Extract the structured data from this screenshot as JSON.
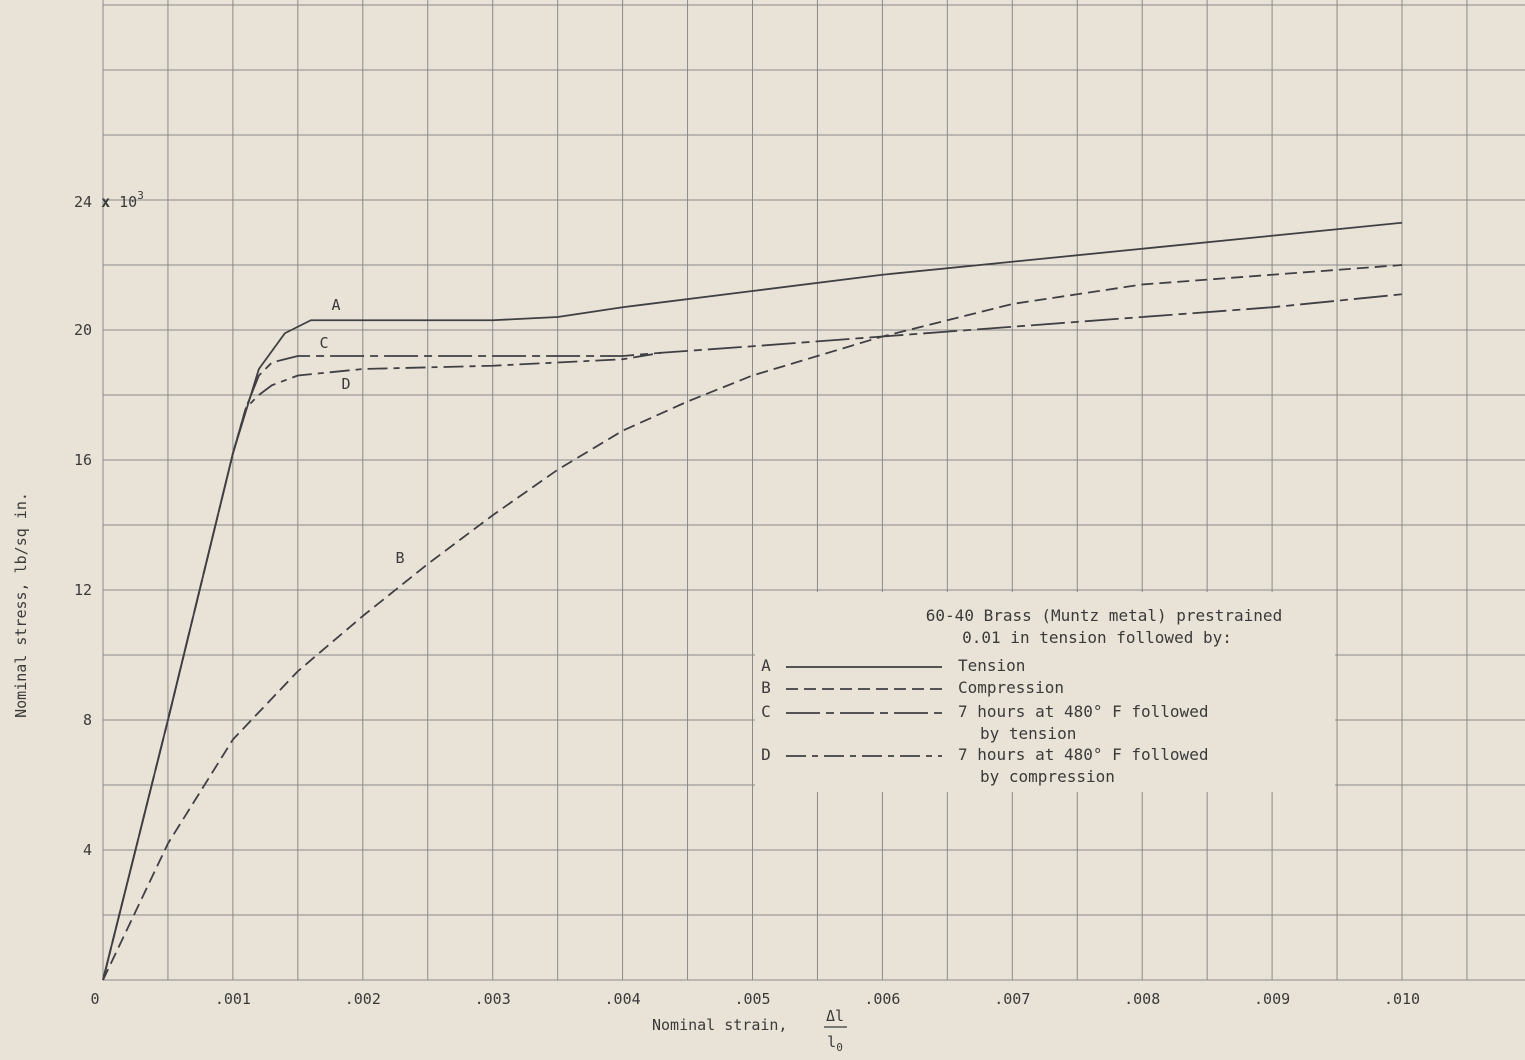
{
  "chart_data": {
    "type": "line",
    "title": "",
    "xlabel": "Nominal strain,",
    "xlabel_fraction": {
      "numerator": "Δl",
      "denominator": "l0"
    },
    "ylabel": "Nominal stress, lb/sq in.",
    "y_multiplier": "24 x 10³",
    "xlim": [
      0,
      0.01
    ],
    "ylim": [
      0,
      24000
    ],
    "x_ticks": [
      {
        "value": 0,
        "label": "0"
      },
      {
        "value": 0.001,
        "label": ".001"
      },
      {
        "value": 0.002,
        "label": ".002"
      },
      {
        "value": 0.003,
        "label": ".003"
      },
      {
        "value": 0.004,
        "label": ".004"
      },
      {
        "value": 0.005,
        "label": ".005"
      },
      {
        "value": 0.006,
        "label": ".006"
      },
      {
        "value": 0.007,
        "label": ".007"
      },
      {
        "value": 0.008,
        "label": ".008"
      },
      {
        "value": 0.009,
        "label": ".009"
      },
      {
        "value": 0.01,
        "label": ".010"
      }
    ],
    "y_ticks": [
      {
        "value": 4000,
        "label": "4"
      },
      {
        "value": 8000,
        "label": "8"
      },
      {
        "value": 12000,
        "label": "12"
      },
      {
        "value": 16000,
        "label": "16"
      },
      {
        "value": 20000,
        "label": "20"
      },
      {
        "value": 24000,
        "label": "24"
      }
    ],
    "grid": true,
    "legend": {
      "placement": "lower-right",
      "title_line1": "60-40 Brass (Muntz metal) prestrained",
      "title_line2": "0.01 in tension followed by:"
    },
    "series": [
      {
        "key": "A",
        "name": "Tension",
        "name_line2": "",
        "style": "solid",
        "x": [
          0,
          0.0005,
          0.001,
          0.0012,
          0.0014,
          0.0016,
          0.002,
          0.003,
          0.0035,
          0.004,
          0.005,
          0.006,
          0.007,
          0.008,
          0.009,
          0.01
        ],
        "y": [
          0,
          8000,
          16200,
          18800,
          19900,
          20300,
          20300,
          20300,
          20400,
          20700,
          21200,
          21700,
          22100,
          22500,
          22900,
          23300
        ]
      },
      {
        "key": "B",
        "name": "Compression",
        "name_line2": "",
        "style": "dashed",
        "x": [
          0,
          0.0005,
          0.001,
          0.0015,
          0.002,
          0.0025,
          0.003,
          0.0035,
          0.004,
          0.0045,
          0.005,
          0.0055,
          0.006,
          0.0065,
          0.007,
          0.0075,
          0.008,
          0.009,
          0.01
        ],
        "y": [
          0,
          4200,
          7400,
          9500,
          11200,
          12800,
          14300,
          15700,
          16900,
          17800,
          18600,
          19200,
          19800,
          20300,
          20800,
          21100,
          21400,
          21700,
          22000
        ]
      },
      {
        "key": "C",
        "name": "7 hours at 480° F followed",
        "name_line2": "by tension",
        "style": "long-dash-short",
        "x": [
          0,
          0.0005,
          0.001,
          0.0011,
          0.0012,
          0.0013,
          0.0015,
          0.002,
          0.003,
          0.004,
          0.0043,
          0.005,
          0.006,
          0.007,
          0.008,
          0.009,
          0.01
        ],
        "y": [
          0,
          8000,
          16200,
          17600,
          18600,
          19000,
          19200,
          19200,
          19200,
          19200,
          19300,
          19500,
          19800,
          20100,
          20400,
          20700,
          21100
        ]
      },
      {
        "key": "D",
        "name": "7 hours at 480° F followed",
        "name_line2": "by compression",
        "style": "dash-dot",
        "x": [
          0,
          0.0005,
          0.001,
          0.0011,
          0.0012,
          0.0013,
          0.0015,
          0.002,
          0.003,
          0.0035,
          0.004,
          0.0043
        ],
        "y": [
          0,
          8000,
          16200,
          17600,
          18000,
          18300,
          18600,
          18800,
          18900,
          19000,
          19100,
          19300
        ]
      }
    ]
  }
}
